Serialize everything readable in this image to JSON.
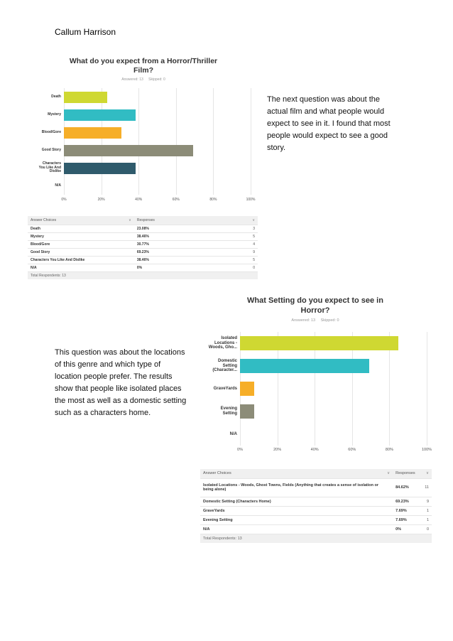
{
  "header": {
    "author": "Callum Harrison"
  },
  "paragraphs": {
    "p1": "The next question was about the actual film and what people would expect to see in it.  I found that most people would expect to see a good story.",
    "p2": "This question was about the locations of this genre and which type of location people prefer. The results show that people like isolated places the most as well as a domestic setting such as a characters home."
  },
  "survey1": {
    "title_line1": "What do you expect from a Horror/Thriller",
    "title_line2": "Film?",
    "answered": "Answered: 13",
    "skipped": "Skipped: 0",
    "ticks": [
      "0%",
      "20%",
      "40%",
      "60%",
      "80%",
      "100%"
    ],
    "table": {
      "header_choices": "Answer Choices",
      "header_responses": "Responses",
      "rows": [
        {
          "choice": "Death",
          "pct": "23.08%",
          "count": "3"
        },
        {
          "choice": "Mystery",
          "pct": "38.46%",
          "count": "5"
        },
        {
          "choice": "Blood/Gore",
          "pct": "30.77%",
          "count": "4"
        },
        {
          "choice": "Good Story",
          "pct": "69.23%",
          "count": "9"
        },
        {
          "choice": "Characters You Like And Dislike",
          "pct": "38.46%",
          "count": "5"
        },
        {
          "choice": "N/A",
          "pct": "0%",
          "count": "0"
        }
      ],
      "total": "Total Respondents: 13"
    }
  },
  "survey2": {
    "title_line1": "What Setting do you expect to see in",
    "title_line2": "Horror?",
    "answered": "Answered: 13",
    "skipped": "Skipped: 0",
    "ticks": [
      "0%",
      "20%",
      "40%",
      "60%",
      "80%",
      "100%"
    ],
    "table": {
      "header_choices": "Answer Choices",
      "header_responses": "Responses",
      "rows": [
        {
          "choice": "Isolated Locations - Woods, Ghost Towns, Fields (Anything that creates a sense of isolation or being alone)",
          "pct": "84.62%",
          "count": "11"
        },
        {
          "choice": "Domestic Setting (Characters Home)",
          "pct": "69.23%",
          "count": "9"
        },
        {
          "choice": "GraveYards",
          "pct": "7.69%",
          "count": "1"
        },
        {
          "choice": "Evening Setting",
          "pct": "7.69%",
          "count": "1"
        },
        {
          "choice": "N/A",
          "pct": "0%",
          "count": "0"
        }
      ],
      "total": "Total Respondents: 13"
    }
  },
  "chart_data": [
    {
      "type": "bar",
      "orientation": "horizontal",
      "title": "What do you expect from a Horror/Thriller Film?",
      "categories": [
        "Death",
        "Mystery",
        "Blood/Gore",
        "Good Story",
        "Characters You Like And Dislike",
        "N/A"
      ],
      "category_labels": [
        [
          "Death"
        ],
        [
          "Mystery"
        ],
        [
          "Blood/Gore"
        ],
        [
          "Good Story"
        ],
        [
          "Characters",
          "You Like And",
          "Dislike"
        ],
        [
          "N/A"
        ]
      ],
      "values": [
        23.08,
        38.46,
        30.77,
        69.23,
        38.46,
        0
      ],
      "colors": [
        "#cfd832",
        "#31bcc3",
        "#f6ae28",
        "#8c8c78",
        "#2f5b6c",
        "#cccccc"
      ],
      "xlim": [
        0,
        100
      ],
      "grid": true
    },
    {
      "type": "bar",
      "orientation": "horizontal",
      "title": "What Setting do you expect to see in Horror?",
      "categories": [
        "Isolated Locations - Woods, Gho...",
        "Domestic Setting (Character...",
        "GraveYards",
        "Evening Setting",
        "N/A"
      ],
      "category_labels": [
        [
          "Isolated",
          "Locations -",
          "Woods, Gho..."
        ],
        [
          "Domestic",
          "Setting",
          "(Character..."
        ],
        [
          "GraveYards"
        ],
        [
          "Evening",
          "Setting"
        ],
        [
          "N/A"
        ]
      ],
      "values": [
        84.62,
        69.23,
        7.69,
        7.69,
        0
      ],
      "colors": [
        "#cfd832",
        "#31bcc3",
        "#f6ae28",
        "#8c8c78",
        "#cccccc"
      ],
      "xlim": [
        0,
        100
      ],
      "grid": true
    }
  ]
}
